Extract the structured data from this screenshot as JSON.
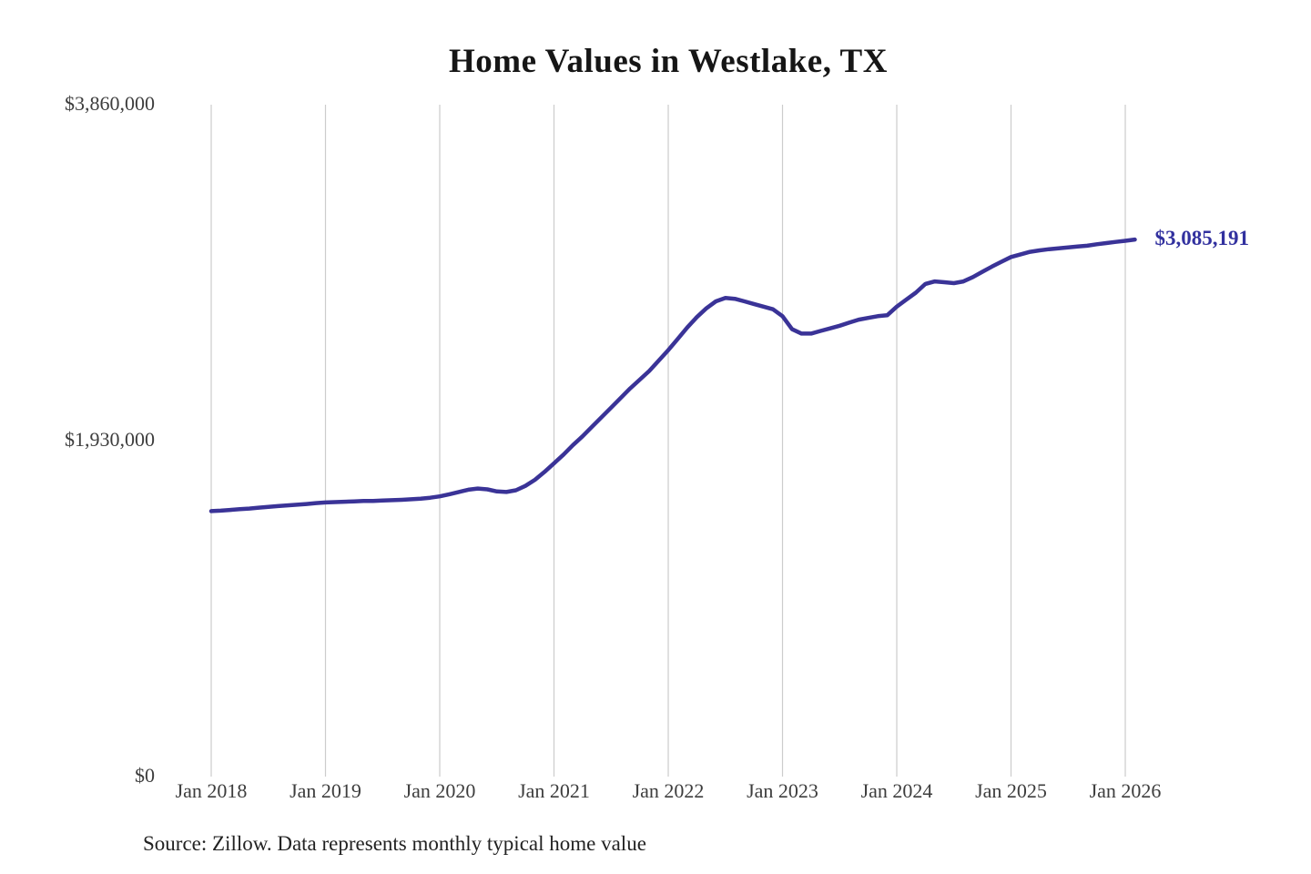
{
  "page": {
    "title": "Home Values in Westlake, TX",
    "source_note": "Source: Zillow. Data represents monthly typical home value"
  },
  "colors": {
    "line": "#3a3397",
    "end_label": "#32319f",
    "grid": "#cccccc",
    "tick_text": "#3d3d3d",
    "title_text": "#161616",
    "note_text": "#222222"
  },
  "chart_data": {
    "type": "line",
    "title": "Home Values in Westlake, TX",
    "xlabel": "",
    "ylabel": "",
    "grid": "vertical-only",
    "legend": "none",
    "ylim": [
      0,
      3860000
    ],
    "y_ticks": [
      {
        "value": 0,
        "label": "$0"
      },
      {
        "value": 1930000,
        "label": "$1,930,000"
      },
      {
        "value": 3860000,
        "label": "$3,860,000"
      }
    ],
    "x_tick_labels": [
      "Jan 2018",
      "Jan 2019",
      "Jan 2020",
      "Jan 2021",
      "Jan 2022",
      "Jan 2023",
      "Jan 2024",
      "Jan 2025",
      "Jan 2026"
    ],
    "months_per_tick": 12,
    "end_label": "$3,085,191",
    "end_value": 3085191,
    "series": [
      {
        "name": "monthly-typical-home-value",
        "x_start": "2018-01",
        "x_freq": "monthly",
        "x": [
          "2018-01",
          "2018-02",
          "2018-03",
          "2018-04",
          "2018-05",
          "2018-06",
          "2018-07",
          "2018-08",
          "2018-09",
          "2018-10",
          "2018-11",
          "2018-12",
          "2019-01",
          "2019-02",
          "2019-03",
          "2019-04",
          "2019-05",
          "2019-06",
          "2019-07",
          "2019-08",
          "2019-09",
          "2019-10",
          "2019-11",
          "2019-12",
          "2020-01",
          "2020-02",
          "2020-03",
          "2020-04",
          "2020-05",
          "2020-06",
          "2020-07",
          "2020-08",
          "2020-09",
          "2020-10",
          "2020-11",
          "2020-12",
          "2021-01",
          "2021-02",
          "2021-03",
          "2021-04",
          "2021-05",
          "2021-06",
          "2021-07",
          "2021-08",
          "2021-09",
          "2021-10",
          "2021-11",
          "2021-12",
          "2022-01",
          "2022-02",
          "2022-03",
          "2022-04",
          "2022-05",
          "2022-06",
          "2022-07",
          "2022-08",
          "2022-09",
          "2022-10",
          "2022-11",
          "2022-12",
          "2023-01",
          "2023-02",
          "2023-03",
          "2023-04",
          "2023-05",
          "2023-06",
          "2023-07",
          "2023-08",
          "2023-09",
          "2023-10",
          "2023-11",
          "2023-12",
          "2024-01",
          "2024-02",
          "2024-03",
          "2024-04",
          "2024-05",
          "2024-06",
          "2024-07",
          "2024-08",
          "2024-09",
          "2024-10",
          "2024-11",
          "2024-12",
          "2025-01",
          "2025-02",
          "2025-03",
          "2025-04",
          "2025-05",
          "2025-06",
          "2025-07",
          "2025-08",
          "2025-09",
          "2025-10",
          "2025-11",
          "2025-12",
          "2026-01",
          "2026-02"
        ],
        "values": [
          1525000,
          1528000,
          1532000,
          1536000,
          1540000,
          1545000,
          1550000,
          1554000,
          1558000,
          1562000,
          1566000,
          1571000,
          1575000,
          1577000,
          1579000,
          1581000,
          1583000,
          1584000,
          1586000,
          1588000,
          1590000,
          1593000,
          1597000,
          1602000,
          1610000,
          1622000,
          1635000,
          1648000,
          1655000,
          1650000,
          1638000,
          1635000,
          1645000,
          1670000,
          1705000,
          1750000,
          1800000,
          1850000,
          1905000,
          1955000,
          2010000,
          2065000,
          2120000,
          2175000,
          2230000,
          2280000,
          2330000,
          2390000,
          2450000,
          2515000,
          2580000,
          2640000,
          2690000,
          2730000,
          2750000,
          2745000,
          2730000,
          2715000,
          2700000,
          2685000,
          2645000,
          2570000,
          2545000,
          2545000,
          2560000,
          2575000,
          2590000,
          2608000,
          2625000,
          2635000,
          2645000,
          2650000,
          2700000,
          2740000,
          2780000,
          2830000,
          2845000,
          2840000,
          2835000,
          2845000,
          2870000,
          2900000,
          2930000,
          2958000,
          2985000,
          3000000,
          3015000,
          3023000,
          3030000,
          3035000,
          3040000,
          3045000,
          3050000,
          3058000,
          3065000,
          3072000,
          3078000,
          3085191
        ]
      }
    ]
  }
}
